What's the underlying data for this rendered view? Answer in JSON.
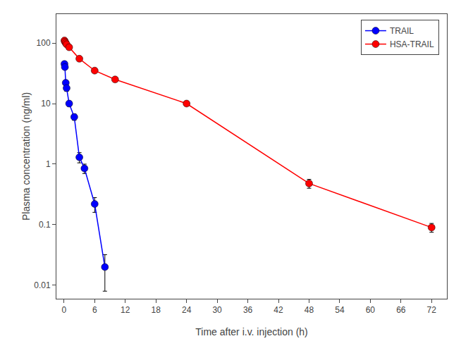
{
  "chart_data": {
    "type": "line",
    "xlabel": "Time after i.v. injection (h)",
    "ylabel": "Plasma concentration (ng/ml)",
    "log": "y",
    "xlim": [
      -1.5,
      75
    ],
    "ylim": [
      0.006,
      300
    ],
    "xticks": [
      0,
      6,
      12,
      18,
      24,
      30,
      36,
      42,
      48,
      54,
      60,
      66,
      72
    ],
    "yticks": [
      0.01,
      0.1,
      1,
      10,
      100
    ],
    "grid": false,
    "legend": "upper right",
    "marker": "circle",
    "line_style": "solid",
    "series": [
      {
        "name": "TRAIL",
        "color": "#0000FF",
        "x": [
          0.083,
          0.167,
          0.333,
          0.5,
          1.0,
          2.0,
          3.0,
          4.0,
          6.0,
          8.0
        ],
        "values": [
          45,
          40,
          22,
          18,
          10,
          6,
          1.3,
          0.85,
          0.22,
          0.02
        ],
        "error_minus": [
          4,
          3,
          2,
          2,
          1,
          0.7,
          0.25,
          0.15,
          0.06,
          0.012
        ],
        "error_plus": [
          4,
          3,
          2,
          2,
          1,
          0.7,
          0.25,
          0.15,
          0.06,
          0.012
        ]
      },
      {
        "name": "HSA-TRAIL",
        "color": "#FF0000",
        "x": [
          0.083,
          0.167,
          0.333,
          0.5,
          1.0,
          3.0,
          6.0,
          10.0,
          24.0,
          48.0,
          72.0
        ],
        "values": [
          110,
          105,
          100,
          95,
          85,
          55,
          35,
          25,
          10,
          0.48,
          0.09
        ],
        "error_minus": [
          6,
          5,
          5,
          4,
          4,
          4,
          2,
          2,
          0.8,
          0.08,
          0.015
        ],
        "error_plus": [
          6,
          5,
          5,
          4,
          4,
          4,
          2,
          2,
          0.8,
          0.08,
          0.015
        ]
      }
    ]
  }
}
